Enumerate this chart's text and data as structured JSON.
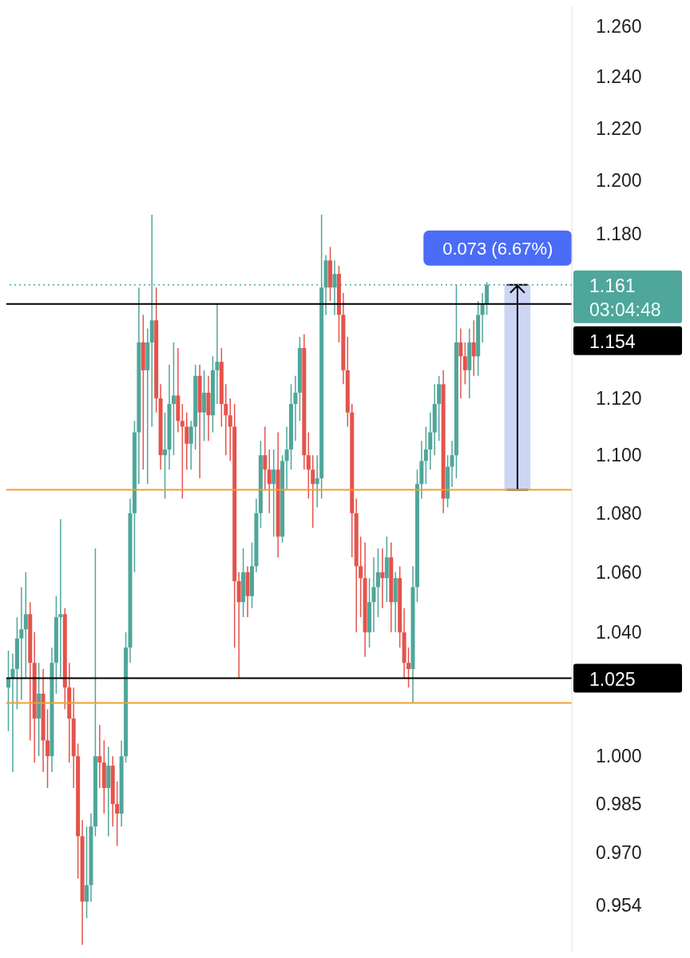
{
  "chart_data": {
    "type": "candlestick",
    "categories": [
      null,
      null,
      null,
      null,
      null,
      null,
      null,
      null,
      null,
      null,
      null,
      null,
      null,
      null,
      null,
      null,
      null,
      null,
      null,
      null,
      null,
      null,
      null,
      null,
      null,
      null,
      null,
      null,
      null,
      null,
      null,
      null,
      null,
      null,
      null,
      null,
      null,
      null,
      null,
      null,
      null,
      null,
      null,
      null,
      null,
      null,
      null,
      null,
      null,
      null,
      null,
      null,
      null,
      null,
      null,
      null,
      null,
      null,
      null,
      null,
      null,
      null,
      null,
      null,
      null,
      null,
      null,
      null,
      null,
      null,
      null,
      null,
      null,
      null,
      null,
      null,
      null,
      null,
      null,
      null,
      null,
      null,
      null,
      null,
      null,
      null,
      null,
      null,
      null,
      null,
      null,
      null,
      null,
      null,
      null,
      null,
      null,
      null,
      null,
      null,
      null,
      null,
      null,
      null,
      null,
      null,
      null,
      null,
      null,
      null,
      null,
      null,
      null,
      null,
      null,
      null,
      null,
      null,
      null,
      null,
      null,
      null,
      null,
      null,
      null,
      null,
      null,
      null,
      null,
      null
    ],
    "ohlc": [
      [
        1.022,
        1.034,
        1.008,
        1.025
      ],
      [
        1.025,
        1.033,
        0.995,
        1.028
      ],
      [
        1.028,
        1.045,
        1.015,
        1.038
      ],
      [
        1.038,
        1.055,
        1.018,
        1.041
      ],
      [
        1.041,
        1.06,
        1.025,
        1.046
      ],
      [
        1.046,
        1.05,
        1.005,
        1.03
      ],
      [
        1.03,
        1.04,
        0.998,
        1.012
      ],
      [
        1.012,
        1.03,
        1.0,
        1.02
      ],
      [
        1.02,
        1.028,
        0.995,
        1.005
      ],
      [
        1.005,
        1.015,
        0.99,
        1.0
      ],
      [
        1.0,
        1.035,
        0.995,
        1.03
      ],
      [
        1.03,
        1.052,
        1.02,
        1.045
      ],
      [
        1.045,
        1.078,
        1.025,
        1.046
      ],
      [
        1.046,
        1.048,
        1.015,
        1.022
      ],
      [
        1.022,
        1.03,
        0.998,
        1.012
      ],
      [
        1.012,
        1.022,
        0.99,
        1.0
      ],
      [
        1.0,
        1.004,
        0.962,
        0.975
      ],
      [
        0.975,
        0.98,
        0.942,
        0.955
      ],
      [
        0.955,
        0.978,
        0.95,
        0.96
      ],
      [
        0.96,
        0.982,
        0.955,
        0.978
      ],
      [
        0.978,
        1.068,
        0.975,
        1.0
      ],
      [
        1.0,
        1.01,
        0.99,
        0.998
      ],
      [
        0.998,
        1.005,
        0.982,
        0.99
      ],
      [
        0.99,
        1.003,
        0.975,
        0.997
      ],
      [
        0.997,
        1.0,
        0.978,
        0.985
      ],
      [
        0.985,
        0.992,
        0.972,
        0.982
      ],
      [
        0.982,
        1.005,
        0.978,
        1.0
      ],
      [
        1.0,
        1.04,
        0.998,
        1.035
      ],
      [
        1.035,
        1.085,
        1.03,
        1.08
      ],
      [
        1.08,
        1.112,
        1.06,
        1.108
      ],
      [
        1.108,
        1.16,
        1.09,
        1.14
      ],
      [
        1.14,
        1.15,
        1.095,
        1.13
      ],
      [
        1.13,
        1.145,
        1.09,
        1.14
      ],
      [
        1.14,
        1.187,
        1.11,
        1.148
      ],
      [
        1.148,
        1.16,
        1.115,
        1.12
      ],
      [
        1.12,
        1.125,
        1.095,
        1.1
      ],
      [
        1.1,
        1.115,
        1.085,
        1.102
      ],
      [
        1.102,
        1.132,
        1.095,
        1.118
      ],
      [
        1.118,
        1.14,
        1.1,
        1.121
      ],
      [
        1.121,
        1.138,
        1.108,
        1.112
      ],
      [
        1.112,
        1.118,
        1.085,
        1.11
      ],
      [
        1.11,
        1.115,
        1.095,
        1.104
      ],
      [
        1.104,
        1.112,
        1.095,
        1.11
      ],
      [
        1.11,
        1.132,
        1.102,
        1.128
      ],
      [
        1.128,
        1.132,
        1.092,
        1.115
      ],
      [
        1.115,
        1.13,
        1.105,
        1.122
      ],
      [
        1.122,
        1.128,
        1.105,
        1.114
      ],
      [
        1.114,
        1.135,
        1.108,
        1.13
      ],
      [
        1.13,
        1.154,
        1.118,
        1.133
      ],
      [
        1.133,
        1.138,
        1.11,
        1.118
      ],
      [
        1.118,
        1.125,
        1.1,
        1.114
      ],
      [
        1.114,
        1.12,
        1.098,
        1.11
      ],
      [
        1.11,
        1.118,
        1.035,
        1.057
      ],
      [
        1.057,
        1.06,
        1.025,
        1.05
      ],
      [
        1.05,
        1.068,
        1.045,
        1.06
      ],
      [
        1.06,
        1.062,
        1.045,
        1.052
      ],
      [
        1.052,
        1.07,
        1.048,
        1.062
      ],
      [
        1.062,
        1.085,
        1.06,
        1.08
      ],
      [
        1.08,
        1.105,
        1.075,
        1.1
      ],
      [
        1.1,
        1.11,
        1.088,
        1.095
      ],
      [
        1.095,
        1.102,
        1.08,
        1.09
      ],
      [
        1.09,
        1.102,
        1.072,
        1.095
      ],
      [
        1.095,
        1.108,
        1.065,
        1.072
      ],
      [
        1.072,
        1.1,
        1.07,
        1.098
      ],
      [
        1.098,
        1.11,
        1.088,
        1.102
      ],
      [
        1.102,
        1.125,
        1.095,
        1.118
      ],
      [
        1.118,
        1.128,
        1.105,
        1.122
      ],
      [
        1.122,
        1.142,
        1.112,
        1.138
      ],
      [
        1.138,
        1.143,
        1.095,
        1.1
      ],
      [
        1.1,
        1.108,
        1.085,
        1.095
      ],
      [
        1.095,
        1.1,
        1.075,
        1.09
      ],
      [
        1.09,
        1.1,
        1.082,
        1.092
      ],
      [
        1.092,
        1.187,
        1.085,
        1.16
      ],
      [
        1.16,
        1.172,
        1.15,
        1.17
      ],
      [
        1.17,
        1.175,
        1.155,
        1.16
      ],
      [
        1.16,
        1.17,
        1.15,
        1.165
      ],
      [
        1.165,
        1.168,
        1.14,
        1.15
      ],
      [
        1.15,
        1.158,
        1.125,
        1.13
      ],
      [
        1.13,
        1.142,
        1.11,
        1.115
      ],
      [
        1.115,
        1.118,
        1.065,
        1.08
      ],
      [
        1.08,
        1.085,
        1.04,
        1.062
      ],
      [
        1.062,
        1.072,
        1.045,
        1.058
      ],
      [
        1.058,
        1.07,
        1.032,
        1.04
      ],
      [
        1.04,
        1.058,
        1.035,
        1.05
      ],
      [
        1.05,
        1.065,
        1.04,
        1.055
      ],
      [
        1.055,
        1.068,
        1.045,
        1.06
      ],
      [
        1.06,
        1.068,
        1.048,
        1.058
      ],
      [
        1.058,
        1.072,
        1.05,
        1.065
      ],
      [
        1.065,
        1.07,
        1.04,
        1.05
      ],
      [
        1.05,
        1.06,
        1.04,
        1.058
      ],
      [
        1.058,
        1.062,
        1.035,
        1.04
      ],
      [
        1.04,
        1.048,
        1.025,
        1.03
      ],
      [
        1.03,
        1.035,
        1.022,
        1.028
      ],
      [
        1.028,
        1.062,
        1.017,
        1.055
      ],
      [
        1.055,
        1.095,
        1.05,
        1.09
      ],
      [
        1.09,
        1.105,
        1.085,
        1.098
      ],
      [
        1.098,
        1.11,
        1.09,
        1.102
      ],
      [
        1.102,
        1.115,
        1.095,
        1.108
      ],
      [
        1.108,
        1.125,
        1.1,
        1.118
      ],
      [
        1.118,
        1.128,
        1.105,
        1.125
      ],
      [
        1.125,
        1.13,
        1.08,
        1.085
      ],
      [
        1.085,
        1.1,
        1.082,
        1.096
      ],
      [
        1.096,
        1.105,
        1.089,
        1.1
      ],
      [
        1.1,
        1.161,
        1.092,
        1.14
      ],
      [
        1.14,
        1.145,
        1.12,
        1.135
      ],
      [
        1.135,
        1.14,
        1.125,
        1.13
      ],
      [
        1.13,
        1.145,
        1.12,
        1.14
      ],
      [
        1.14,
        1.148,
        1.128,
        1.135
      ],
      [
        1.135,
        1.155,
        1.128,
        1.15
      ],
      [
        1.15,
        1.158,
        1.14,
        1.154
      ],
      [
        1.154,
        1.162,
        1.15,
        1.161
      ],
      null,
      null,
      null,
      null,
      null,
      null,
      null,
      null,
      null,
      null,
      null,
      null,
      null,
      null,
      null,
      null,
      null,
      null,
      null
    ],
    "colors": [
      "#4fa69a",
      "#4fa69a",
      "#4fa69a",
      "#4fa69a",
      "#4fa69a",
      "#e5534b",
      "#e5534b",
      "#4fa69a",
      "#e5534b",
      "#e5534b",
      "#4fa69a",
      "#4fa69a",
      "#4fa69a",
      "#e5534b",
      "#e5534b",
      "#e5534b",
      "#e5534b",
      "#e5534b",
      "#4fa69a",
      "#4fa69a",
      "#4fa69a",
      "#e5534b",
      "#e5534b",
      "#4fa69a",
      "#e5534b",
      "#e5534b",
      "#4fa69a",
      "#4fa69a",
      "#4fa69a",
      "#4fa69a",
      "#4fa69a",
      "#e5534b",
      "#4fa69a",
      "#4fa69a",
      "#e5534b",
      "#e5534b",
      "#4fa69a",
      "#4fa69a",
      "#4fa69a",
      "#e5534b",
      "#e5534b",
      "#e5534b",
      "#4fa69a",
      "#4fa69a",
      "#e5534b",
      "#4fa69a",
      "#e5534b",
      "#4fa69a",
      "#4fa69a",
      "#e5534b",
      "#e5534b",
      "#e5534b",
      "#e5534b",
      "#e5534b",
      "#4fa69a",
      "#e5534b",
      "#4fa69a",
      "#4fa69a",
      "#4fa69a",
      "#e5534b",
      "#e5534b",
      "#4fa69a",
      "#e5534b",
      "#4fa69a",
      "#4fa69a",
      "#4fa69a",
      "#4fa69a",
      "#4fa69a",
      "#e5534b",
      "#e5534b",
      "#e5534b",
      "#4fa69a",
      "#4fa69a",
      "#4fa69a",
      "#e5534b",
      "#4fa69a",
      "#e5534b",
      "#e5534b",
      "#e5534b",
      "#e5534b",
      "#e5534b",
      "#e5534b",
      "#e5534b",
      "#4fa69a",
      "#4fa69a",
      "#4fa69a",
      "#e5534b",
      "#4fa69a",
      "#e5534b",
      "#4fa69a",
      "#e5534b",
      "#e5534b",
      "#e5534b",
      "#4fa69a",
      "#4fa69a",
      "#4fa69a",
      "#4fa69a",
      "#4fa69a",
      "#4fa69a",
      "#4fa69a",
      "#e5534b",
      "#4fa69a",
      "#4fa69a",
      "#4fa69a",
      "#e5534b",
      "#e5534b",
      "#4fa69a",
      "#e5534b",
      "#4fa69a",
      "#4fa69a",
      "#4fa69a",
      null,
      null,
      null,
      null,
      null,
      null,
      null,
      null,
      null,
      null,
      null,
      null,
      null,
      null,
      null,
      null,
      null,
      null,
      null
    ],
    "log": true,
    "ylim": [
      0.94,
      1.268
    ],
    "yticks": [
      {
        "value": 1.26,
        "label": "1.260"
      },
      {
        "value": 1.24,
        "label": "1.240"
      },
      {
        "value": 1.22,
        "label": "1.220"
      },
      {
        "value": 1.2,
        "label": "1.200"
      },
      {
        "value": 1.18,
        "label": "1.180"
      },
      {
        "value": 1.12,
        "label": "1.120"
      },
      {
        "value": 1.1,
        "label": "1.100"
      },
      {
        "value": 1.08,
        "label": "1.080"
      },
      {
        "value": 1.06,
        "label": "1.060"
      },
      {
        "value": 1.04,
        "label": "1.040"
      },
      {
        "value": 1,
        "label": "1.000"
      },
      {
        "value": 0.985,
        "label": "0.985"
      },
      {
        "value": 0.97,
        "label": "0.970"
      },
      {
        "value": 0.954,
        "label": "0.954"
      }
    ],
    "tick_labels": "y",
    "ref_lines": [
      {
        "axis": "y",
        "value": 1.161,
        "label": "1.161",
        "color": "#4fa69a",
        "line_style": "dotted"
      },
      {
        "axis": "y",
        "value": 1.154,
        "label": "1.154",
        "color": "#000000"
      },
      {
        "axis": "y",
        "value": 1.025,
        "label": "1.025",
        "color": "#000000"
      },
      {
        "axis": "y",
        "value": 1.088,
        "color": "#f0a030"
      },
      {
        "axis": "y",
        "value": 1.017,
        "color": "#f0a030"
      }
    ],
    "bands": [
      {
        "axis": "y",
        "from": 1.088,
        "to": 1.161,
        "label": "0.073 (6.67%)",
        "color": "#ccd5f5"
      }
    ],
    "annotations": [
      "03:04:48"
    ]
  }
}
